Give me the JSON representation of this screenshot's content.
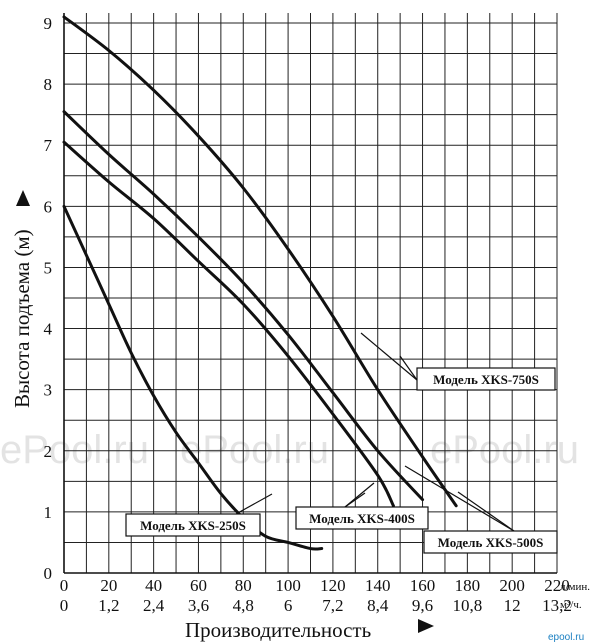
{
  "chart_data": {
    "type": "line",
    "xlabel": "Производительность",
    "ylabel": "Высота подъема (м)",
    "x_unit_top": "л/мин.",
    "x_unit_bottom": "м³/ч.",
    "x_ticks_top": [
      "0",
      "20",
      "40",
      "60",
      "80",
      "100",
      "120",
      "140",
      "160",
      "180",
      "200",
      "220"
    ],
    "x_ticks_bottom": [
      "0",
      "1,2",
      "2,4",
      "3,6",
      "4,8",
      "6",
      "7,2",
      "8,4",
      "9,6",
      "10,8",
      "12",
      "13,2"
    ],
    "y_ticks": [
      "0",
      "1",
      "2",
      "3",
      "4",
      "5",
      "6",
      "7",
      "8",
      "9"
    ],
    "xlim": [
      0,
      220
    ],
    "ylim": [
      0,
      9
    ],
    "grid": true,
    "series": [
      {
        "name": "Модель XKS-250S",
        "points": [
          [
            0,
            6.0
          ],
          [
            10,
            5.2
          ],
          [
            20,
            4.4
          ],
          [
            30,
            3.6
          ],
          [
            40,
            2.9
          ],
          [
            50,
            2.3
          ],
          [
            60,
            1.8
          ],
          [
            70,
            1.3
          ],
          [
            80,
            0.9
          ],
          [
            90,
            0.6
          ],
          [
            100,
            0.5
          ],
          [
            110,
            0.4
          ],
          [
            115,
            0.4
          ]
        ]
      },
      {
        "name": "Модель XKS-400S",
        "points": [
          [
            0,
            7.05
          ],
          [
            20,
            6.4
          ],
          [
            40,
            5.8
          ],
          [
            60,
            5.1
          ],
          [
            80,
            4.4
          ],
          [
            100,
            3.55
          ],
          [
            120,
            2.6
          ],
          [
            140,
            1.6
          ],
          [
            147,
            1.1
          ]
        ]
      },
      {
        "name": "Модель XKS-500S",
        "points": [
          [
            0,
            7.55
          ],
          [
            20,
            6.85
          ],
          [
            40,
            6.2
          ],
          [
            60,
            5.5
          ],
          [
            80,
            4.75
          ],
          [
            100,
            3.9
          ],
          [
            120,
            2.95
          ],
          [
            140,
            2.0
          ],
          [
            160,
            1.2
          ]
        ]
      },
      {
        "name": "Модель XKS-750S",
        "points": [
          [
            0,
            9.1
          ],
          [
            20,
            8.55
          ],
          [
            40,
            7.9
          ],
          [
            60,
            7.15
          ],
          [
            80,
            6.3
          ],
          [
            100,
            5.3
          ],
          [
            120,
            4.2
          ],
          [
            140,
            3.0
          ],
          [
            160,
            1.9
          ],
          [
            175,
            1.1
          ]
        ]
      }
    ],
    "legend": [
      "Модель XKS-250S",
      "Модель XKS-400S",
      "Модель XKS-500S",
      "Модель XKS-750S"
    ]
  },
  "watermarks": [
    "ePool.ru",
    "ePool.ru",
    "ePool.ru"
  ],
  "brand": "epool.ru"
}
